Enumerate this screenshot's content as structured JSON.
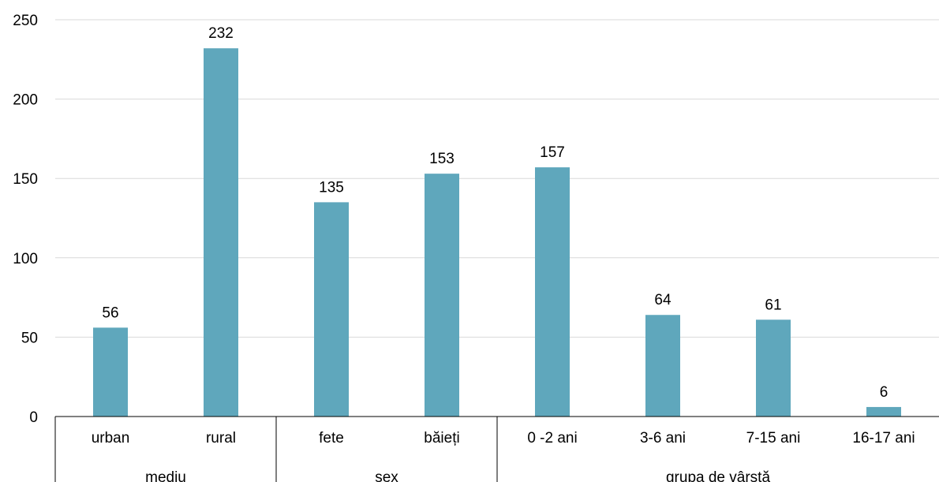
{
  "chart_data": {
    "type": "bar",
    "title": "",
    "xlabel": "",
    "ylabel": "",
    "categories": [
      "urban",
      "rural",
      "fete",
      "băieți",
      "0 -2 ani",
      "3-6 ani",
      "7-15 ani",
      "16-17 ani"
    ],
    "groups": [
      {
        "label": "mediu",
        "count": 2
      },
      {
        "label": "sex",
        "count": 2
      },
      {
        "label": "grupa de vârstă",
        "count": 4
      }
    ],
    "values": [
      56,
      232,
      135,
      153,
      157,
      64,
      61,
      6
    ],
    "data_labels": [
      "56",
      "232",
      "135",
      "153",
      "157",
      "64",
      "61",
      "6"
    ],
    "ylim": [
      0,
      250
    ],
    "yticks": [
      0,
      50,
      100,
      150,
      200,
      250
    ],
    "grid": true,
    "legend": "none",
    "colors": {
      "bar": "#5fa7bc",
      "grid": "#d9d9d9",
      "axis": "#000000",
      "text": "#000000"
    }
  }
}
